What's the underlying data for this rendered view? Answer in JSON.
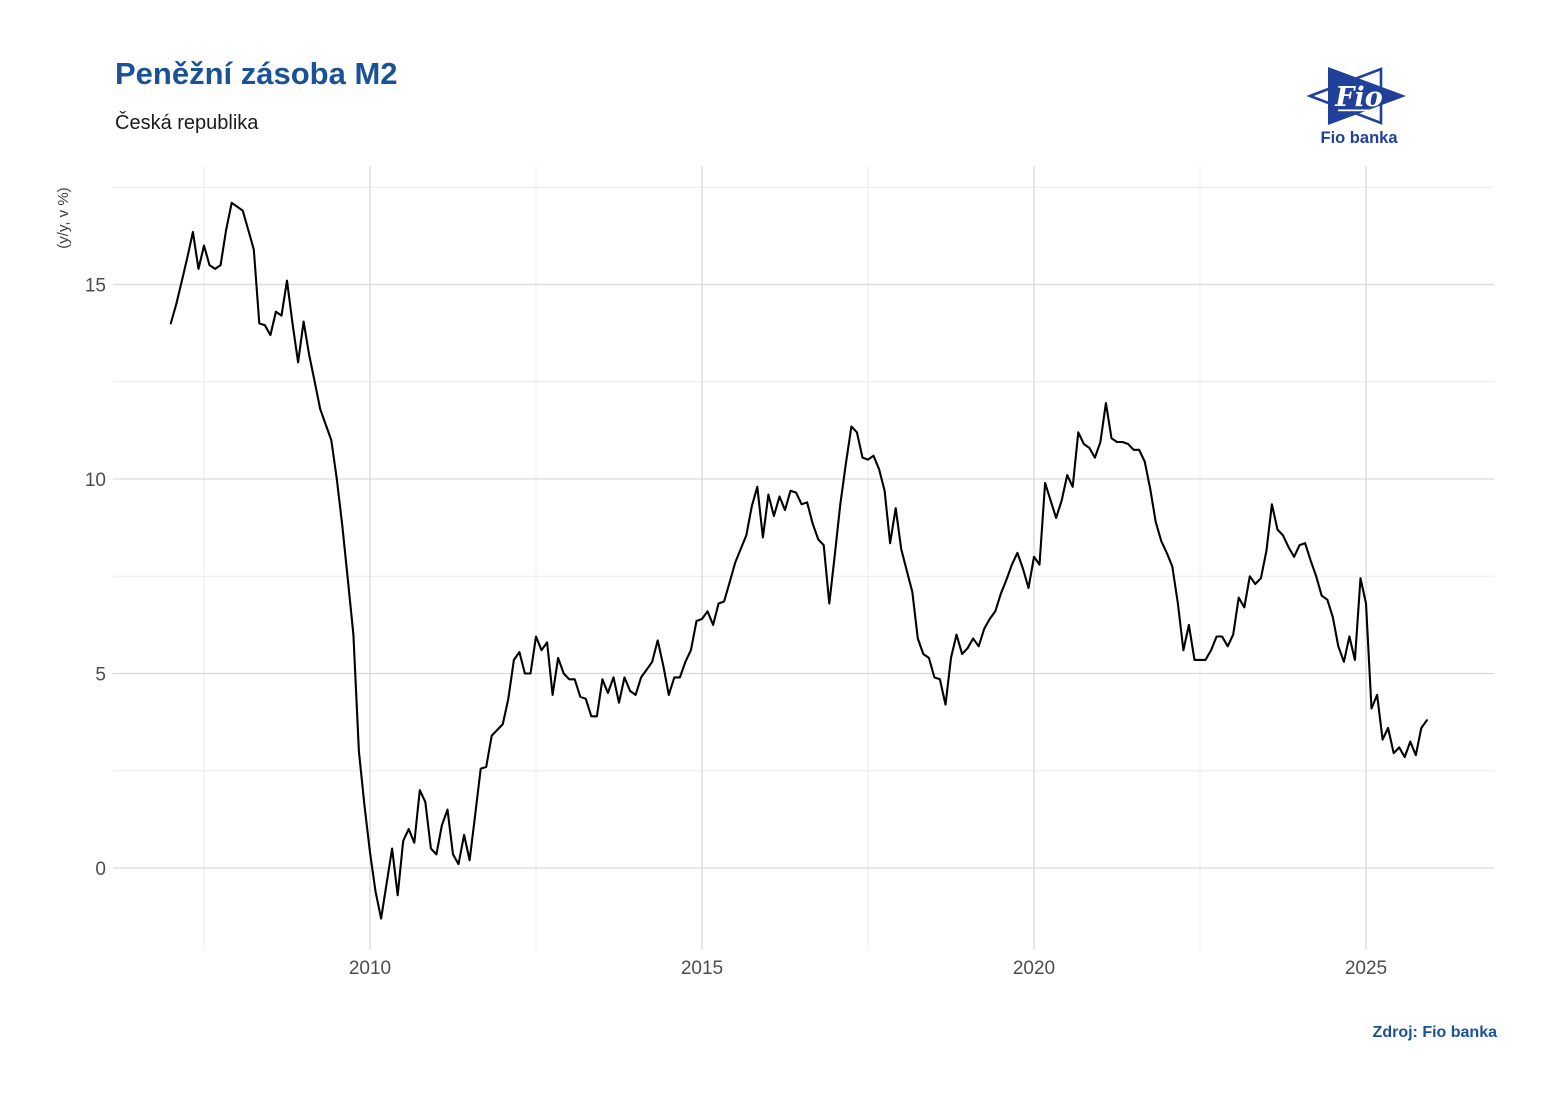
{
  "header": {
    "title": "Peněžní zásoba M2",
    "subtitle": "Česká republika"
  },
  "logo": {
    "symbol_text": "Fio",
    "caption": "Fio banka"
  },
  "footer": {
    "source": "Zdroj: Fio banka"
  },
  "colors": {
    "title_blue": "#1a5296",
    "logo_blue": "#21409a",
    "line": "#000000",
    "grid_major": "#d9d9d9",
    "grid_minor": "#eaeaea",
    "axis_text": "#4d4d4d",
    "axis_title": "#3c3c3c"
  },
  "chart_data": {
    "type": "line",
    "title": "Peněžní zásoba M2",
    "subtitle": "Česká republika",
    "xlabel": "",
    "ylabel": "(y/y, v %)",
    "x_ticks": [
      2010,
      2015,
      2020,
      2025
    ],
    "x_minor_ticks": [
      2007.5,
      2012.5,
      2017.5,
      2022.5
    ],
    "y_ticks": [
      0,
      5,
      10,
      15
    ],
    "y_minor_ticks": [
      2.5,
      7.5,
      12.5,
      17.5
    ],
    "xlim": [
      2006.14,
      2026.93
    ],
    "ylim": [
      -2.1,
      18.0
    ],
    "grid": true,
    "legend_position": "none",
    "series": [
      {
        "name": "M2",
        "start_year": 2007,
        "start_month": 1,
        "frequency": "monthly",
        "values": [
          14.0,
          14.5,
          15.1,
          15.7,
          16.35,
          15.4,
          16.0,
          15.5,
          15.4,
          15.5,
          16.4,
          17.1,
          17.0,
          16.9,
          16.4,
          15.9,
          14.0,
          13.95,
          13.7,
          14.3,
          14.2,
          15.1,
          14.0,
          13.0,
          14.05,
          13.2,
          12.5,
          11.8,
          11.4,
          11.0,
          10.0,
          8.8,
          7.4,
          6.0,
          3.0,
          1.6,
          0.4,
          -0.6,
          -1.3,
          -0.4,
          0.5,
          -0.7,
          0.7,
          1.0,
          0.65,
          2.0,
          1.7,
          0.5,
          0.35,
          1.1,
          1.5,
          0.35,
          0.1,
          0.85,
          0.2,
          1.35,
          2.55,
          2.6,
          3.4,
          3.55,
          3.7,
          4.35,
          5.35,
          5.55,
          5.0,
          5.0,
          5.95,
          5.6,
          5.8,
          4.45,
          5.4,
          5.0,
          4.85,
          4.85,
          4.4,
          4.35,
          3.9,
          3.9,
          4.85,
          4.5,
          4.9,
          4.25,
          4.9,
          4.55,
          4.45,
          4.9,
          5.1,
          5.3,
          5.85,
          5.2,
          4.45,
          4.9,
          4.9,
          5.3,
          5.6,
          6.35,
          6.4,
          6.6,
          6.25,
          6.8,
          6.85,
          7.35,
          7.85,
          8.2,
          8.55,
          9.3,
          9.8,
          8.5,
          9.6,
          9.05,
          9.55,
          9.2,
          9.7,
          9.65,
          9.35,
          9.4,
          8.85,
          8.45,
          8.3,
          6.8,
          8.05,
          9.35,
          10.4,
          11.35,
          11.2,
          10.55,
          10.5,
          10.6,
          10.25,
          9.7,
          8.35,
          9.25,
          8.2,
          7.65,
          7.1,
          5.9,
          5.5,
          5.4,
          4.9,
          4.85,
          4.2,
          5.4,
          6.0,
          5.5,
          5.65,
          5.9,
          5.7,
          6.15,
          6.4,
          6.6,
          7.05,
          7.4,
          7.8,
          8.1,
          7.7,
          7.2,
          8.0,
          7.8,
          9.9,
          9.45,
          9.0,
          9.45,
          10.1,
          9.8,
          11.2,
          10.9,
          10.8,
          10.55,
          10.95,
          11.95,
          11.05,
          10.95,
          10.95,
          10.9,
          10.75,
          10.75,
          10.45,
          9.75,
          8.9,
          8.4,
          8.1,
          7.75,
          6.8,
          5.6,
          6.25,
          5.35,
          5.35,
          5.35,
          5.6,
          5.95,
          5.95,
          5.7,
          6.0,
          6.95,
          6.7,
          7.5,
          7.3,
          7.45,
          8.15,
          9.35,
          8.7,
          8.55,
          8.25,
          8.0,
          8.3,
          8.35,
          7.9,
          7.5,
          7.0,
          6.9,
          6.45,
          5.7,
          5.3,
          5.95,
          5.35,
          7.45,
          6.8,
          4.1,
          4.45,
          3.3,
          3.6,
          2.95,
          3.1,
          2.85,
          3.25,
          2.9,
          3.6,
          3.8
        ]
      }
    ]
  }
}
